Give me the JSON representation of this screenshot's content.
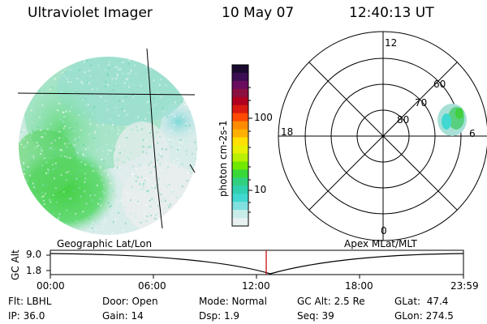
{
  "header": {
    "instrument": "Ultraviolet Imager",
    "date": "10 May 07",
    "time": "12:40:13 UT"
  },
  "colorbar": {
    "unit_label": "photon cm-2s-1",
    "ticks": [
      "100",
      "10"
    ],
    "colors": [
      "#1a0a2e",
      "#3b0d52",
      "#6a0d5e",
      "#8b0f3f",
      "#b00020",
      "#d81a10",
      "#ff4a00",
      "#ff8c00",
      "#ffb000",
      "#ffe000",
      "#e8f000",
      "#b8f000",
      "#70e800",
      "#38d838",
      "#30d080",
      "#30d0b0",
      "#40d8d0",
      "#80e0e0",
      "#c8ece8",
      "#e8f0f0"
    ]
  },
  "polar_plot": {
    "mlt_labels": {
      "top": "12",
      "bottom": "0",
      "left": "18",
      "right": "6"
    },
    "lat_labels": [
      "60",
      "70",
      "80"
    ]
  },
  "timeline": {
    "ylabel": "GC Alt",
    "ytick_top": "9.0",
    "ytick_bottom": "1.8",
    "label_left": "Geographic Lat/Lon",
    "label_right": "Apex MLat/MLT",
    "xticks": [
      "00:00",
      "06:00",
      "12:00",
      "18:00",
      "23:59"
    ],
    "marker_color": "#c00000"
  },
  "info": {
    "filter": "Flt: LBHL",
    "ip": "IP: 36.0",
    "door": "Door: Open",
    "gain": "Gain: 14",
    "mode": "Mode: Normal",
    "dsp": "Dsp:    1.9",
    "gc_alt": "GC Alt: 2.5 Re",
    "seq": "Seq: 39",
    "glat": "GLat:  47.4",
    "glon": "GLon: 274.5"
  }
}
